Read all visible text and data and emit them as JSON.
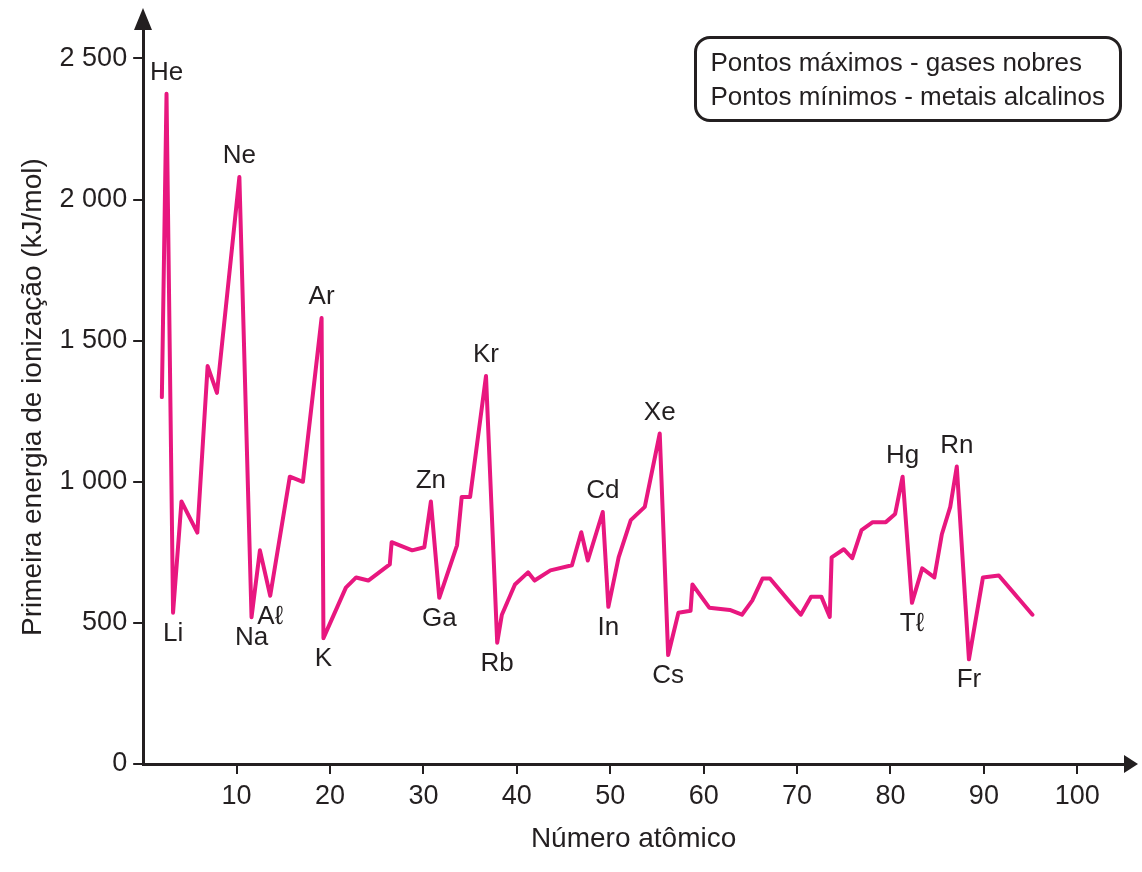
{
  "chart_data": {
    "type": "line",
    "xlabel": "Número atômico",
    "ylabel": "Primeira energia de ionização (kJ/mol)",
    "xlim": [
      0,
      105
    ],
    "xticks": [
      10,
      20,
      30,
      40,
      50,
      60,
      70,
      80,
      90,
      100
    ],
    "ylim": [
      0,
      2600
    ],
    "yticks": [
      0,
      500,
      {
        "value": 1000,
        "label": "1 000"
      },
      {
        "value": 1500,
        "label": "1 500"
      },
      {
        "value": 2000,
        "label": "2 000"
      },
      {
        "value": 2500,
        "label": "2 500"
      }
    ],
    "grid": false,
    "legend": false,
    "marker": "none",
    "series": [
      {
        "color": "#e8177f",
        "x": [
          2.0,
          2.5,
          3.2,
          4.1,
          5.8,
          6.9,
          7.9,
          10.3,
          11.6,
          12.5,
          13.6,
          15.7,
          17.1,
          19.1,
          19.3,
          21.7,
          22.8,
          24.1,
          26.4,
          26.6,
          28.8,
          30.1,
          30.8,
          31.7,
          33.6,
          34.1,
          35.0,
          36.7,
          37.9,
          38.4,
          39.8,
          41.2,
          41.9,
          43.6,
          45.9,
          46.9,
          47.6,
          49.2,
          49.8,
          50.9,
          52.2,
          53.7,
          55.3,
          56.2,
          57.3,
          58.6,
          58.8,
          60.6,
          62.8,
          64.1,
          65.2,
          66.3,
          67.1,
          69.1,
          70.4,
          71.5,
          72.6,
          73.5,
          73.7,
          75.0,
          75.9,
          76.9,
          78.1,
          79.5,
          80.5,
          81.3,
          82.3,
          83.4,
          84.7,
          85.5,
          86.4,
          87.1,
          88.4,
          89.9,
          91.6,
          95.2
        ],
        "values": [
          1300,
          2375,
          536,
          930,
          820,
          1410,
          1315,
          2080,
          520,
          757,
          596,
          1018,
          1000,
          1580,
          446,
          625,
          661,
          650,
          707,
          786,
          757,
          768,
          930,
          589,
          775,
          946,
          946,
          1375,
          430,
          529,
          636,
          679,
          650,
          686,
          704,
          821,
          721,
          893,
          557,
          732,
          864,
          911,
          1171,
          386,
          536,
          543,
          636,
          554,
          546,
          529,
          579,
          657,
          657,
          579,
          529,
          593,
          593,
          521,
          732,
          761,
          729,
          829,
          857,
          857,
          886,
          1018,
          571,
          693,
          661,
          814,
          911,
          1054,
          371,
          661,
          668,
          529
        ]
      }
    ],
    "annotations": [
      "Pontos máximos - gases nobres",
      "Pontos mínimos - metais alcalinos",
      {
        "text": "He",
        "x": 2.5,
        "y": 2375
      },
      {
        "text": "Li",
        "x": 3.2,
        "y": 536
      },
      {
        "text": "Ne",
        "x": 10.3,
        "y": 2080
      },
      {
        "text": "Na",
        "x": 11.6,
        "y": 520
      },
      {
        "text": "Aℓ",
        "x": 13.6,
        "y": 596
      },
      {
        "text": "Ar",
        "x": 19.1,
        "y": 1580
      },
      {
        "text": "K",
        "x": 19.3,
        "y": 446
      },
      {
        "text": "Zn",
        "x": 30.8,
        "y": 930
      },
      {
        "text": "Ga",
        "x": 31.7,
        "y": 589
      },
      {
        "text": "Kr",
        "x": 36.7,
        "y": 1375
      },
      {
        "text": "Rb",
        "x": 37.9,
        "y": 430
      },
      {
        "text": "Cd",
        "x": 49.2,
        "y": 893
      },
      {
        "text": "In",
        "x": 49.8,
        "y": 557
      },
      {
        "text": "Xe",
        "x": 55.3,
        "y": 1171
      },
      {
        "text": "Cs",
        "x": 56.2,
        "y": 386
      },
      {
        "text": "Hg",
        "x": 81.3,
        "y": 1018
      },
      {
        "text": "Tℓ",
        "x": 82.3,
        "y": 571
      },
      {
        "text": "Rn",
        "x": 87.1,
        "y": 1054
      },
      {
        "text": "Fr",
        "x": 88.4,
        "y": 371
      }
    ]
  }
}
